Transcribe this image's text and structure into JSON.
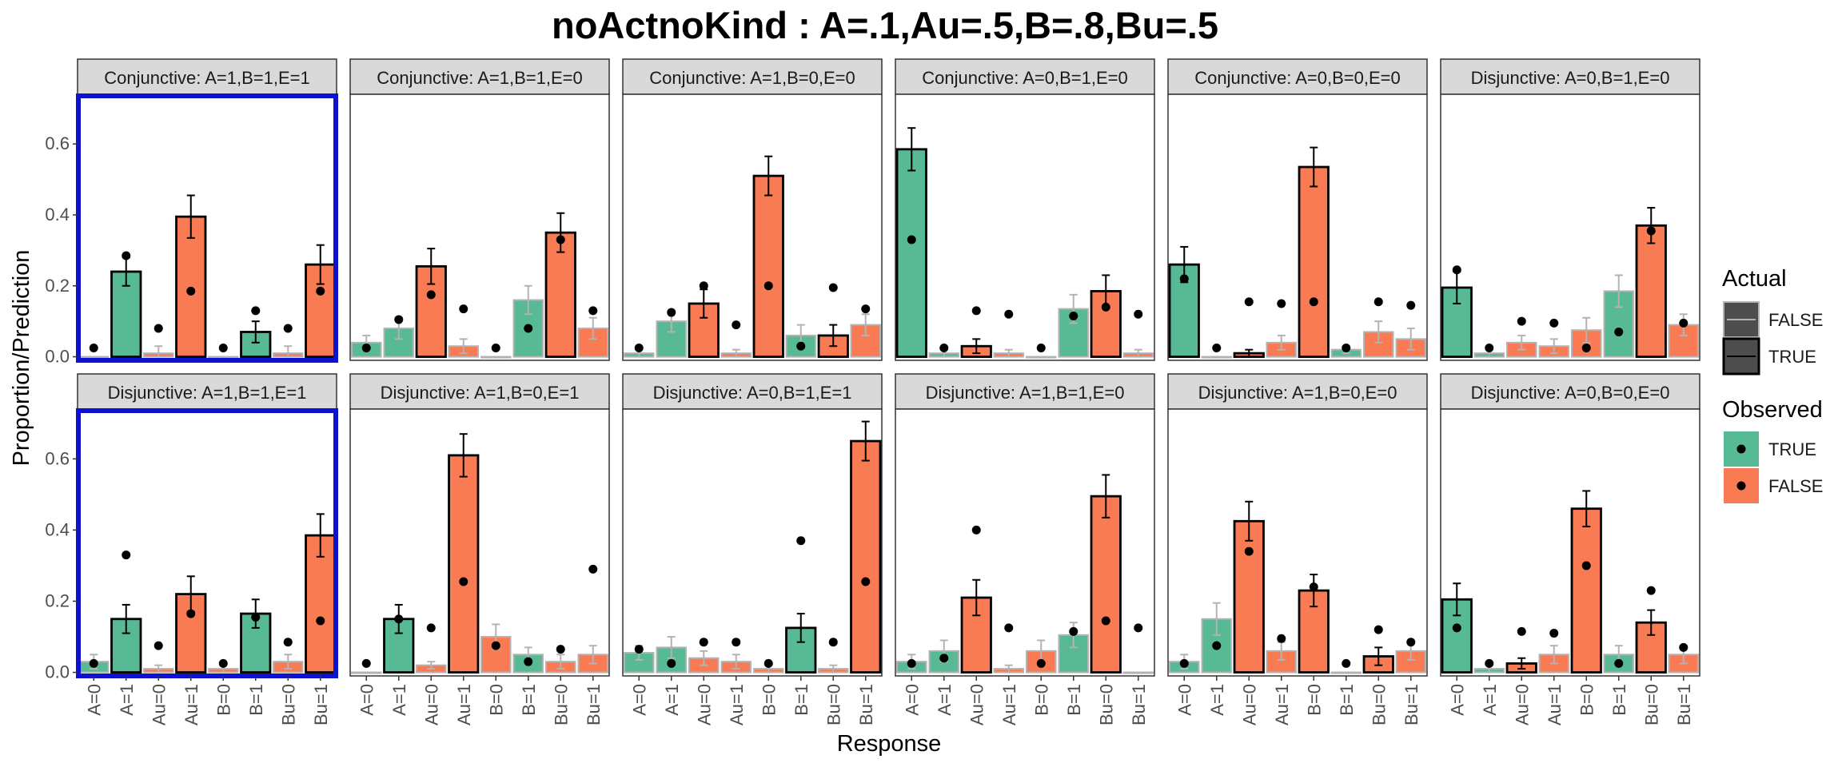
{
  "chart_data": {
    "type": "bar",
    "title": "noActnoKind : A=.1,Au=.5,B=.8,Bu=.5",
    "xlabel": "Response",
    "ylabel": "Proportion/Prediction",
    "categories": [
      "A=0",
      "A=1",
      "Au=0",
      "Au=1",
      "B=0",
      "B=1",
      "Bu=0",
      "Bu=1"
    ],
    "ylim": [
      -0.01,
      0.74
    ],
    "yticks": [
      0.0,
      0.2,
      0.4,
      0.6
    ],
    "ytick_labels": [
      "0.0",
      "0.2",
      "0.4",
      "0.6"
    ],
    "colors": {
      "observed_true": "#57BA94",
      "observed_false": "#F97B54",
      "strip_fill": "#D9D9D9",
      "highlight_border": "#0D12CF",
      "actual_false_outline": "#B3B3B3",
      "actual_true_outline": "#000000"
    },
    "observed": [
      true,
      true,
      false,
      false,
      false,
      true,
      false,
      false
    ],
    "legend": {
      "actual_title": "Actual",
      "actual_items": [
        "FALSE",
        "TRUE"
      ],
      "observed_title": "Observed",
      "observed_items": [
        "TRUE",
        "FALSE"
      ]
    },
    "panels": [
      {
        "label": "Conjunctive: A=1,B=1,E=1",
        "highlight": true,
        "actual": [
          false,
          true,
          false,
          true,
          false,
          true,
          false,
          true
        ],
        "values": [
          0.0,
          0.24,
          0.01,
          0.395,
          0.0,
          0.07,
          0.01,
          0.26
        ],
        "errors": [
          0.0,
          0.04,
          0.02,
          0.06,
          0.0,
          0.03,
          0.02,
          0.055
        ],
        "predictions": [
          0.025,
          0.285,
          0.08,
          0.185,
          0.025,
          0.13,
          0.08,
          0.185
        ]
      },
      {
        "label": "Conjunctive: A=1,B=1,E=0",
        "highlight": false,
        "actual": [
          false,
          false,
          true,
          false,
          false,
          false,
          true,
          false
        ],
        "values": [
          0.04,
          0.08,
          0.255,
          0.03,
          0.0,
          0.16,
          0.35,
          0.08
        ],
        "errors": [
          0.02,
          0.03,
          0.05,
          0.02,
          0.0,
          0.04,
          0.055,
          0.03
        ],
        "predictions": [
          0.025,
          0.105,
          0.175,
          0.135,
          0.025,
          0.08,
          0.33,
          0.13
        ]
      },
      {
        "label": "Conjunctive: A=1,B=0,E=0",
        "highlight": false,
        "actual": [
          false,
          false,
          true,
          false,
          true,
          false,
          true,
          false
        ],
        "values": [
          0.01,
          0.1,
          0.15,
          0.01,
          0.51,
          0.06,
          0.06,
          0.09
        ],
        "errors": [
          0.01,
          0.03,
          0.04,
          0.01,
          0.055,
          0.03,
          0.03,
          0.03
        ],
        "predictions": [
          0.025,
          0.125,
          0.2,
          0.09,
          0.2,
          0.03,
          0.195,
          0.135
        ]
      },
      {
        "label": "Conjunctive: A=0,B=1,E=0",
        "highlight": false,
        "actual": [
          true,
          false,
          true,
          false,
          false,
          false,
          true,
          false
        ],
        "values": [
          0.585,
          0.01,
          0.03,
          0.01,
          0.0,
          0.135,
          0.185,
          0.01
        ],
        "errors": [
          0.06,
          0.01,
          0.02,
          0.01,
          0.0,
          0.04,
          0.045,
          0.01
        ],
        "predictions": [
          0.33,
          0.025,
          0.13,
          0.12,
          0.025,
          0.115,
          0.14,
          0.12
        ]
      },
      {
        "label": "Conjunctive: A=0,B=0,E=0",
        "highlight": false,
        "actual": [
          true,
          false,
          true,
          false,
          true,
          false,
          false,
          false
        ],
        "values": [
          0.26,
          0.0,
          0.01,
          0.04,
          0.535,
          0.02,
          0.07,
          0.05
        ],
        "errors": [
          0.05,
          0.0,
          0.01,
          0.02,
          0.055,
          0.01,
          0.03,
          0.03
        ],
        "predictions": [
          0.22,
          0.025,
          0.155,
          0.15,
          0.155,
          0.025,
          0.155,
          0.145
        ]
      },
      {
        "label": "Disjunctive: A=0,B=1,E=0",
        "highlight": false,
        "actual": [
          true,
          false,
          false,
          false,
          false,
          false,
          true,
          false
        ],
        "values": [
          0.195,
          0.01,
          0.04,
          0.03,
          0.075,
          0.185,
          0.37,
          0.09
        ],
        "errors": [
          0.045,
          0.01,
          0.02,
          0.02,
          0.035,
          0.045,
          0.05,
          0.03
        ],
        "predictions": [
          0.245,
          0.025,
          0.1,
          0.095,
          0.025,
          0.07,
          0.355,
          0.095
        ]
      },
      {
        "label": "Disjunctive: A=1,B=1,E=1",
        "highlight": true,
        "actual": [
          false,
          true,
          false,
          true,
          false,
          true,
          false,
          true
        ],
        "values": [
          0.03,
          0.15,
          0.01,
          0.22,
          0.01,
          0.165,
          0.03,
          0.385
        ],
        "errors": [
          0.02,
          0.04,
          0.01,
          0.05,
          0.01,
          0.04,
          0.02,
          0.06
        ],
        "predictions": [
          0.025,
          0.33,
          0.075,
          0.165,
          0.025,
          0.155,
          0.085,
          0.145
        ]
      },
      {
        "label": "Disjunctive: A=1,B=0,E=1",
        "highlight": false,
        "actual": [
          false,
          true,
          false,
          true,
          false,
          false,
          false,
          false
        ],
        "values": [
          0.0,
          0.15,
          0.02,
          0.61,
          0.1,
          0.05,
          0.03,
          0.05
        ],
        "errors": [
          0.0,
          0.04,
          0.01,
          0.06,
          0.035,
          0.02,
          0.02,
          0.025
        ],
        "predictions": [
          0.025,
          0.15,
          0.125,
          0.255,
          0.075,
          0.03,
          0.065,
          0.29
        ]
      },
      {
        "label": "Disjunctive: A=0,B=1,E=1",
        "highlight": false,
        "actual": [
          false,
          false,
          false,
          false,
          false,
          true,
          false,
          true
        ],
        "values": [
          0.055,
          0.07,
          0.04,
          0.03,
          0.01,
          0.125,
          0.01,
          0.65
        ],
        "errors": [
          0.02,
          0.03,
          0.02,
          0.02,
          0.01,
          0.04,
          0.01,
          0.055
        ],
        "predictions": [
          0.065,
          0.025,
          0.085,
          0.085,
          0.025,
          0.37,
          0.085,
          0.255
        ]
      },
      {
        "label": "Disjunctive: A=1,B=1,E=0",
        "highlight": false,
        "actual": [
          false,
          false,
          true,
          false,
          false,
          false,
          true,
          false
        ],
        "values": [
          0.03,
          0.06,
          0.21,
          0.01,
          0.06,
          0.105,
          0.495,
          0.0
        ],
        "errors": [
          0.02,
          0.03,
          0.05,
          0.01,
          0.03,
          0.035,
          0.06,
          0.0
        ],
        "predictions": [
          0.025,
          0.04,
          0.4,
          0.125,
          0.025,
          0.115,
          0.145,
          0.125
        ]
      },
      {
        "label": "Disjunctive: A=1,B=0,E=0",
        "highlight": false,
        "actual": [
          false,
          false,
          true,
          false,
          true,
          false,
          true,
          false
        ],
        "values": [
          0.03,
          0.15,
          0.425,
          0.06,
          0.23,
          0.0,
          0.045,
          0.06
        ],
        "errors": [
          0.02,
          0.045,
          0.055,
          0.025,
          0.045,
          0.0,
          0.025,
          0.025
        ],
        "predictions": [
          0.025,
          0.075,
          0.34,
          0.095,
          0.24,
          0.025,
          0.12,
          0.085
        ]
      },
      {
        "label": "Disjunctive: A=0,B=0,E=0",
        "highlight": false,
        "actual": [
          true,
          false,
          true,
          false,
          true,
          false,
          true,
          false
        ],
        "values": [
          0.205,
          0.01,
          0.025,
          0.05,
          0.46,
          0.05,
          0.14,
          0.05
        ],
        "errors": [
          0.045,
          0.01,
          0.015,
          0.025,
          0.05,
          0.025,
          0.035,
          0.025
        ],
        "predictions": [
          0.125,
          0.025,
          0.115,
          0.11,
          0.3,
          0.025,
          0.23,
          0.07
        ]
      }
    ]
  }
}
